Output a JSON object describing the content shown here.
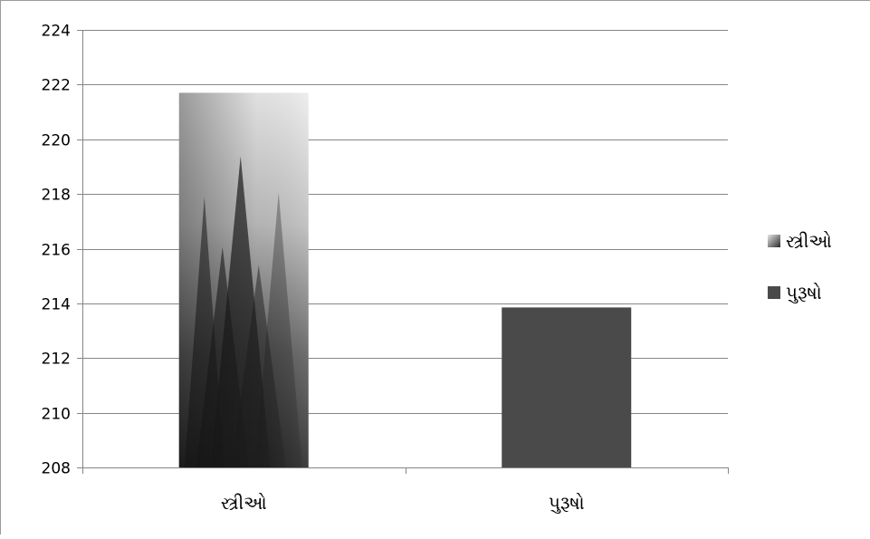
{
  "chart_data": {
    "type": "bar",
    "categories": [
      "સ્ત્રીઓ",
      "પુરૂષો"
    ],
    "series": [
      {
        "name": "સ્ત્રીઓ",
        "values": [
          221.7,
          null
        ],
        "fill": "picture-forest-fog",
        "color": "#555555"
      },
      {
        "name": "પુરૂષો",
        "values": [
          null,
          213.85
        ],
        "fill": "solid",
        "color": "#4a4a4a"
      }
    ],
    "title": "",
    "xlabel": "",
    "ylabel": "",
    "ylim": [
      208,
      224
    ],
    "yticks": [
      208,
      210,
      212,
      214,
      216,
      218,
      220,
      222,
      224
    ],
    "grid": true,
    "legend_position": "right"
  }
}
